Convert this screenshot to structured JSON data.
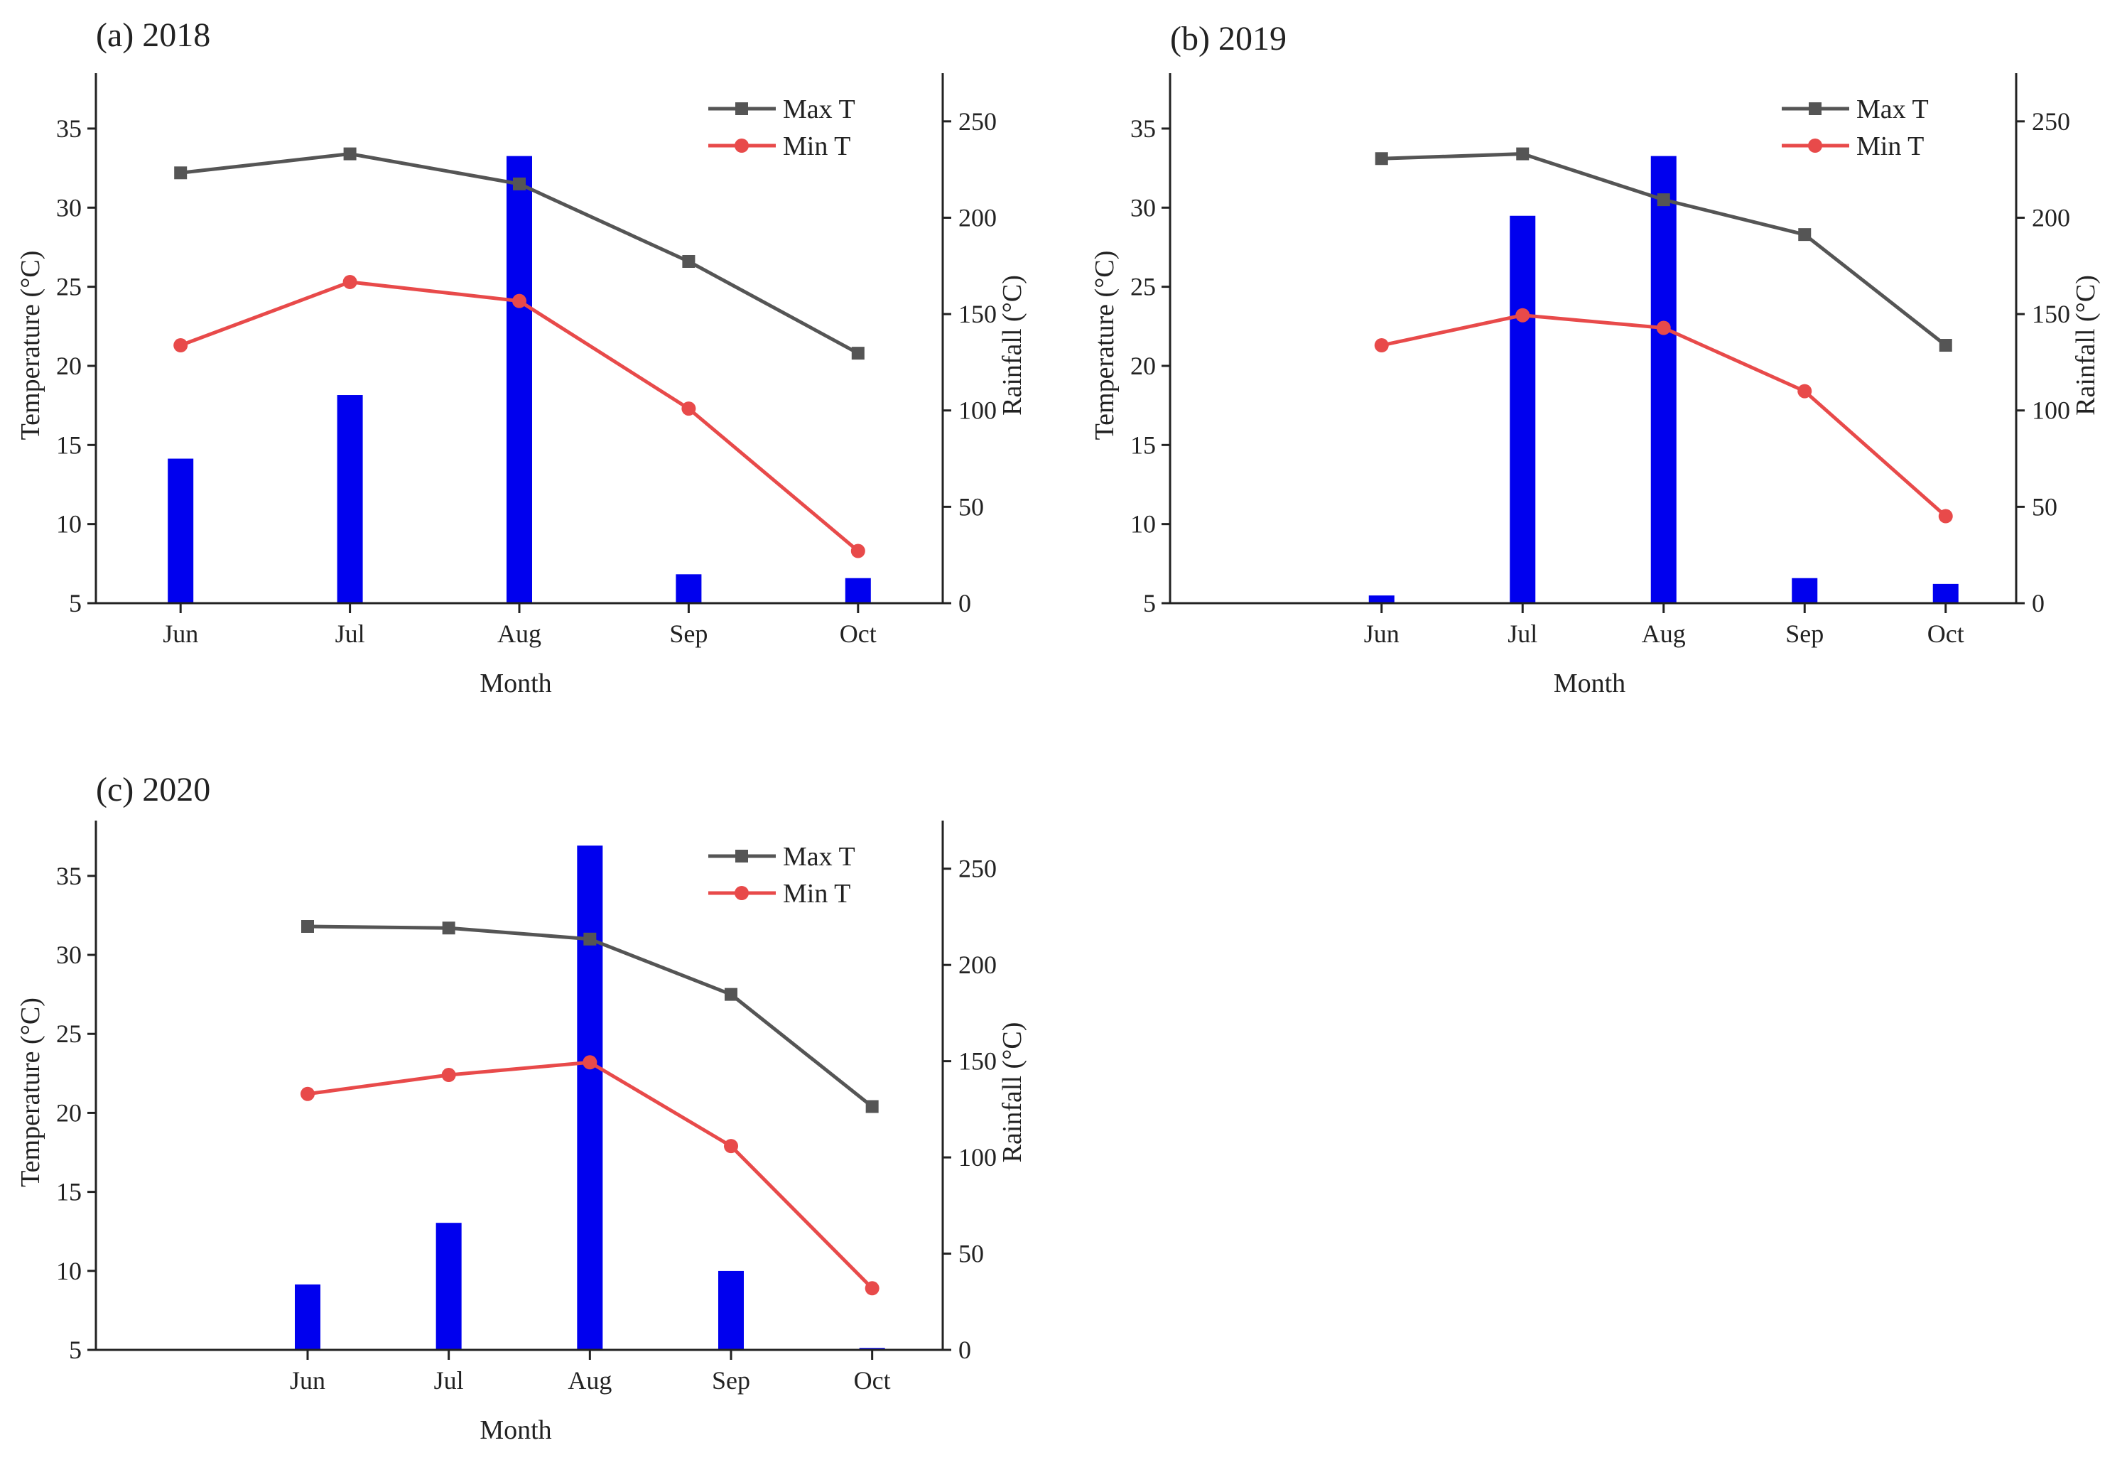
{
  "colors": {
    "max_t": "#555555",
    "min_t": "#e84a4a",
    "rainfall": "#0000ee",
    "axis": "#222222"
  },
  "chart_data": [
    {
      "type": "line+bar",
      "title": "(a) 2018",
      "categories": [
        "Jun",
        "Jul",
        "Aug",
        "Sep",
        "Oct"
      ],
      "xlabel": "Month",
      "ylabel": "Temperature (°C)",
      "y2label": "Rainfall (°C)",
      "ylim": [
        5,
        38.5
      ],
      "y_ticks": [
        5,
        10,
        15,
        20,
        25,
        30,
        35
      ],
      "y2lim": [
        0,
        275
      ],
      "y2_ticks": [
        0,
        50,
        100,
        150,
        200,
        250
      ],
      "series": [
        {
          "name": "Max T",
          "kind": "line",
          "marker": "square",
          "axis": "left",
          "values": [
            32.2,
            33.4,
            31.5,
            26.6,
            20.8
          ]
        },
        {
          "name": "Min T",
          "kind": "line",
          "marker": "circle",
          "axis": "left",
          "values": [
            21.3,
            25.3,
            24.1,
            17.3,
            8.3
          ]
        },
        {
          "name": "Rainfall",
          "kind": "bar",
          "axis": "right",
          "values": [
            75,
            108,
            232,
            15,
            13
          ]
        }
      ],
      "legend": {
        "position": "top-right",
        "entries": [
          "Max T",
          "Min T"
        ]
      },
      "x_slots": [
        1,
        2,
        3,
        4,
        5
      ],
      "x_range": [
        0.5,
        5.5
      ]
    },
    {
      "type": "line+bar",
      "title": "(b) 2019",
      "categories": [
        "Jun",
        "Jul",
        "Aug",
        "Sep",
        "Oct"
      ],
      "xlabel": "Month",
      "ylabel": "Temperature (°C)",
      "y2label": "Rainfall (°C)",
      "ylim": [
        5,
        38.5
      ],
      "y_ticks": [
        5,
        10,
        15,
        20,
        25,
        30,
        35
      ],
      "y2lim": [
        0,
        275
      ],
      "y2_ticks": [
        0,
        50,
        100,
        150,
        200,
        250
      ],
      "series": [
        {
          "name": "Max T",
          "kind": "line",
          "marker": "square",
          "axis": "left",
          "values": [
            33.1,
            33.4,
            30.5,
            28.3,
            21.3
          ]
        },
        {
          "name": "Min T",
          "kind": "line",
          "marker": "circle",
          "axis": "left",
          "values": [
            21.3,
            23.2,
            22.4,
            18.4,
            10.5
          ]
        },
        {
          "name": "Rainfall",
          "kind": "bar",
          "axis": "right",
          "values": [
            4,
            201,
            232,
            13,
            10
          ]
        }
      ],
      "legend": {
        "position": "top-right",
        "entries": [
          "Max T",
          "Min T"
        ]
      },
      "x_slots": [
        2,
        3,
        4,
        5,
        6
      ],
      "x_range": [
        0.5,
        6.5
      ]
    },
    {
      "type": "line+bar",
      "title": "(c) 2020",
      "categories": [
        "Jun",
        "Jul",
        "Aug",
        "Sep",
        "Oct"
      ],
      "xlabel": "Month",
      "ylabel": "Temperature (°C)",
      "y2label": "Rainfall (°C)",
      "ylim": [
        5,
        38.5
      ],
      "y_ticks": [
        5,
        10,
        15,
        20,
        25,
        30,
        35
      ],
      "y2lim": [
        0,
        275
      ],
      "y2_ticks": [
        0,
        50,
        100,
        150,
        200,
        250
      ],
      "series": [
        {
          "name": "Max T",
          "kind": "line",
          "marker": "square",
          "axis": "left",
          "values": [
            31.8,
            31.7,
            31.0,
            27.5,
            20.4
          ]
        },
        {
          "name": "Min T",
          "kind": "line",
          "marker": "circle",
          "axis": "left",
          "values": [
            21.2,
            22.4,
            23.2,
            17.9,
            8.9
          ]
        },
        {
          "name": "Rainfall",
          "kind": "bar",
          "axis": "right",
          "values": [
            34,
            66,
            262,
            41,
            1
          ]
        }
      ],
      "legend": {
        "position": "top-right",
        "entries": [
          "Max T",
          "Min T"
        ]
      },
      "x_slots": [
        2,
        3,
        4,
        5,
        6
      ],
      "x_range": [
        0.5,
        6.5
      ]
    }
  ]
}
